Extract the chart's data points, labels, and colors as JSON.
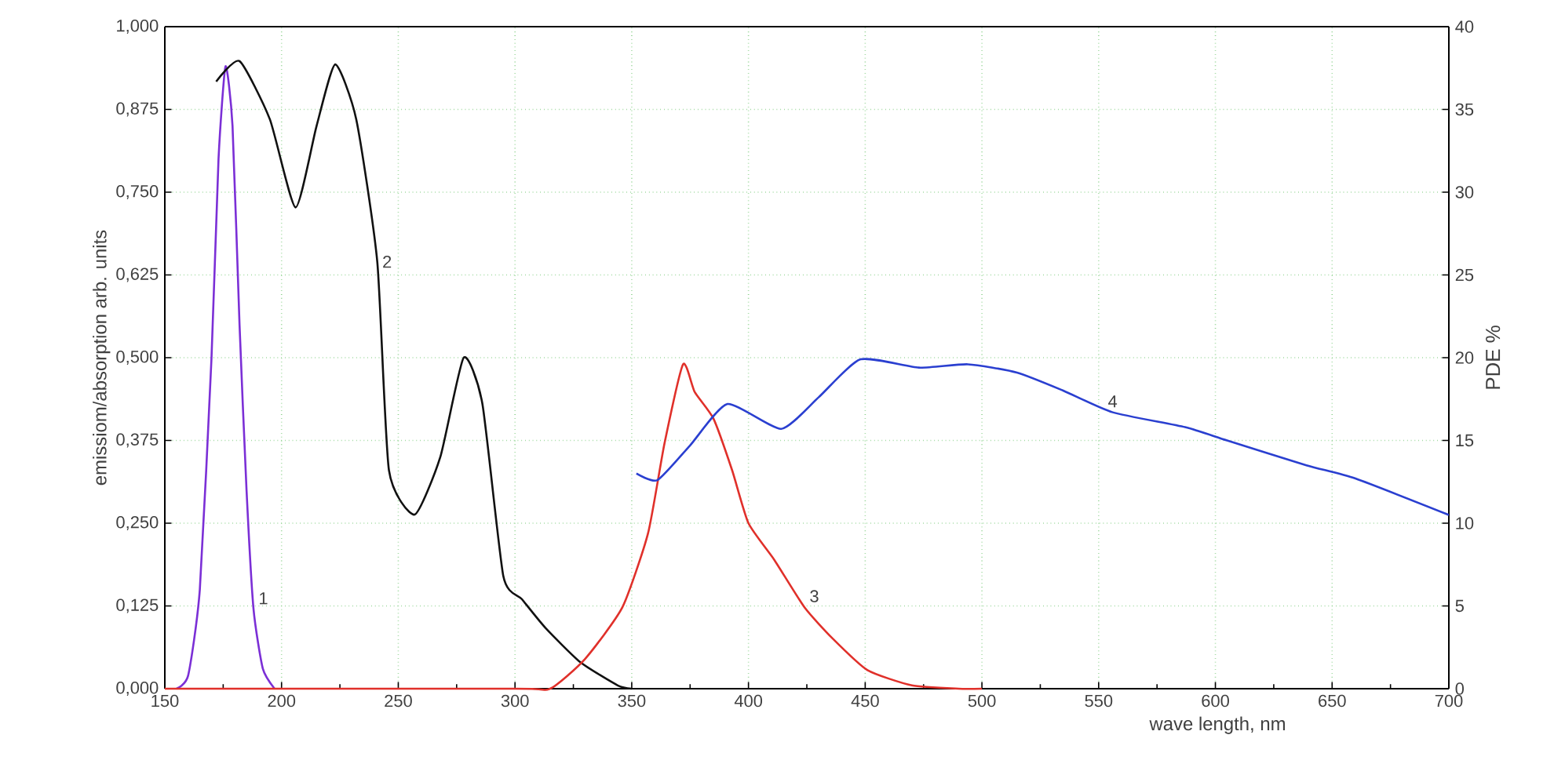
{
  "chart_data": {
    "type": "line",
    "xlabel": "wave length, nm",
    "ylabel": "emissiom/absorption arb. units",
    "y2label": "PDE %",
    "xlim": [
      150,
      700
    ],
    "xticks": [
      150,
      200,
      250,
      300,
      350,
      400,
      450,
      500,
      550,
      600,
      650,
      700
    ],
    "ylim": [
      0,
      1
    ],
    "yticks": [
      {
        "value": 0,
        "label": "0,000"
      },
      {
        "value": 0.125,
        "label": "0,125"
      },
      {
        "value": 0.25,
        "label": "0,250"
      },
      {
        "value": 0.375,
        "label": "0,375"
      },
      {
        "value": 0.5,
        "label": "0,500"
      },
      {
        "value": 0.625,
        "label": "0,625"
      },
      {
        "value": 0.75,
        "label": "0,750"
      },
      {
        "value": 0.875,
        "label": "0,875"
      },
      {
        "value": 1,
        "label": "1,000"
      }
    ],
    "y2lim": [
      0,
      40
    ],
    "y2ticks": [
      0,
      5,
      10,
      15,
      20,
      25,
      30,
      35,
      40
    ],
    "grid": true,
    "marker": "none",
    "line_style": "solid",
    "series": [
      {
        "name": "1",
        "color": "#7b2fd6",
        "x": [
          155,
          160,
          165,
          170,
          173,
          176,
          179,
          182,
          185,
          188,
          192,
          197
        ],
        "values": [
          0,
          0.02,
          0.15,
          0.5,
          0.8,
          0.94,
          0.85,
          0.55,
          0.3,
          0.12,
          0.03,
          0
        ]
      },
      {
        "name": "2",
        "color": "#111111",
        "x": [
          172,
          182,
          195,
          206,
          215,
          223,
          232,
          241,
          246,
          257,
          268,
          278,
          286,
          295,
          303,
          313,
          328,
          344,
          350
        ],
        "values": [
          0.917,
          0.948,
          0.86,
          0.727,
          0.85,
          0.943,
          0.86,
          0.645,
          0.33,
          0.263,
          0.35,
          0.5,
          0.431,
          0.17,
          0.135,
          0.092,
          0.04,
          0.005,
          0
        ]
      },
      {
        "name": "3",
        "color": "#e0302a",
        "x": [
          150,
          300,
          315,
          330,
          346,
          357,
          364,
          372,
          377,
          385,
          393,
          400,
          411,
          424,
          436,
          451,
          470,
          490,
          500
        ],
        "values": [
          0,
          0,
          0,
          0.045,
          0.123,
          0.235,
          0.37,
          0.49,
          0.448,
          0.408,
          0.33,
          0.25,
          0.195,
          0.123,
          0.076,
          0.028,
          0.005,
          0,
          0
        ]
      },
      {
        "name": "4",
        "color": "#2a3fd0",
        "axis": "y2",
        "x": [
          352,
          361,
          375,
          391,
          414,
          430,
          448,
          473,
          494,
          515,
          535,
          556,
          587,
          605,
          639,
          660,
          700
        ],
        "values": [
          13.0,
          12.6,
          14.7,
          17.2,
          15.7,
          17.6,
          19.9,
          19.4,
          19.6,
          19.1,
          18.0,
          16.7,
          15.8,
          15.0,
          13.5,
          12.7,
          10.5
        ]
      }
    ]
  }
}
